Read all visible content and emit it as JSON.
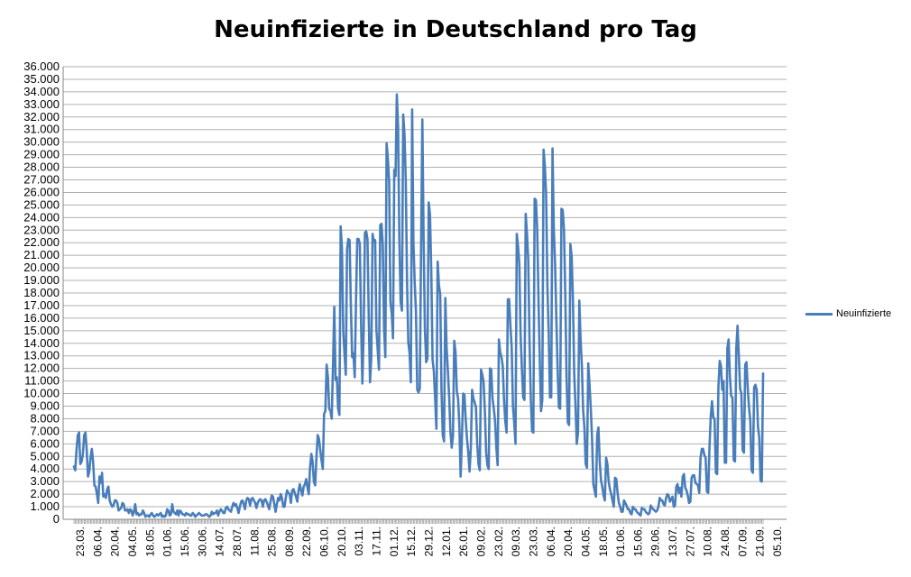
{
  "chart_data": {
    "type": "line",
    "title": "Neuinfizierte in Deutschland pro Tag",
    "xlabel": "",
    "ylabel": "",
    "ylim": [
      0,
      36000
    ],
    "ytick_step": 1000,
    "ytick_labels": [
      "0",
      "1.000",
      "2.000",
      "3.000",
      "4.000",
      "5.000",
      "6.000",
      "7.000",
      "8.000",
      "9.000",
      "10.000",
      "11.000",
      "12.000",
      "13.000",
      "14.000",
      "15.000",
      "16.000",
      "17.000",
      "18.000",
      "19.000",
      "20.000",
      "21.000",
      "22.000",
      "23.000",
      "24.000",
      "25.000",
      "26.000",
      "27.000",
      "28.000",
      "29.000",
      "30.000",
      "31.000",
      "32.000",
      "33.000",
      "34.000",
      "35.000",
      "36.000"
    ],
    "xtick_labels": [
      "23.03.",
      "06.04.",
      "20.04.",
      "04.05.",
      "18.05.",
      "01.06.",
      "15.06.",
      "30.06.",
      "14.07.",
      "28.07.",
      "11.08.",
      "25.08.",
      "08.09.",
      "22.09.",
      "06.10.",
      "20.10.",
      "03.11.",
      "17.11.",
      "01.12.",
      "15.12.",
      "29.12.",
      "12.01.",
      "26.01.",
      "09.02.",
      "23.02.",
      "09.03.",
      "23.03.",
      "06.04.",
      "20.04.",
      "04.05.",
      "18.05.",
      "01.06.",
      "15.06.",
      "29.06.",
      "13.07.",
      "27.07.",
      "10.08.",
      "24.08.",
      "07.09.",
      "21.09.",
      "05.10."
    ],
    "grid": true,
    "legend": "right",
    "series": [
      {
        "name": "Neuinfizierte",
        "color": "#4a7ebb",
        "values": [
          4200,
          3900,
          5500,
          6700,
          6900,
          4400,
          4600,
          5200,
          6700,
          6900,
          5500,
          3400,
          3800,
          4900,
          5600,
          4600,
          2700,
          2600,
          2000,
          1300,
          3400,
          2900,
          3700,
          1800,
          2000,
          1700,
          2400,
          2600,
          1500,
          1200,
          1000,
          1100,
          1500,
          1500,
          1300,
          700,
          800,
          900,
          1300,
          1200,
          700,
          700,
          800,
          500,
          800,
          700,
          300,
          600,
          1200,
          400,
          500,
          300,
          400,
          400,
          700,
          500,
          200,
          300,
          300,
          200,
          400,
          500,
          300,
          200,
          300,
          400,
          300,
          400,
          500,
          200,
          300,
          200,
          300,
          800,
          700,
          300,
          400,
          1200,
          600,
          500,
          400,
          700,
          300,
          700,
          600,
          400,
          400,
          300,
          500,
          400,
          400,
          300,
          300,
          500,
          400,
          200,
          300,
          400,
          500,
          400,
          300,
          300,
          300,
          400,
          400,
          300,
          200,
          300,
          600,
          400,
          500,
          500,
          700,
          300,
          600,
          800,
          700,
          500,
          500,
          900,
          1000,
          800,
          700,
          600,
          1000,
          1300,
          1100,
          1200,
          900,
          500,
          1000,
          1400,
          1500,
          1200,
          800,
          1500,
          1700,
          1600,
          1100,
          1600,
          1700,
          1500,
          1300,
          900,
          1300,
          1500,
          1600,
          1500,
          1000,
          1500,
          1600,
          1400,
          1100,
          800,
          1400,
          1900,
          1800,
          1200,
          600,
          1200,
          1700,
          1500,
          2000,
          1700,
          1000,
          1000,
          1700,
          2300,
          2100,
          2000,
          1300,
          2300,
          2400,
          2100,
          1800,
          1400,
          2300,
          2800,
          2300,
          1900,
          2600,
          2800,
          3200,
          2500,
          2000,
          4100,
          5200,
          4600,
          3000,
          2700,
          4900,
          6700,
          6400,
          5500,
          4700,
          4000,
          8400,
          8600,
          12300,
          11300,
          8800,
          8600,
          8000,
          12300,
          16900,
          11100,
          11300,
          8800,
          8300,
          23300,
          21600,
          15000,
          13200,
          11500,
          21500,
          22300,
          22200,
          16900,
          12900,
          13200,
          11300,
          17300,
          22300,
          22300,
          21900,
          15500,
          10800,
          14800,
          22800,
          22900,
          22300,
          16100,
          10900,
          12900,
          22700,
          22100,
          22200,
          15100,
          13500,
          11900,
          23400,
          23500,
          21800,
          15200,
          12900,
          29900,
          28700,
          26800,
          17300,
          16400,
          14400,
          27800,
          27300,
          33800,
          31200,
          22200,
          17300,
          16600,
          32200,
          30600,
          27000,
          18900,
          14100,
          13200,
          10900,
          32600,
          22100,
          18800,
          16500,
          10300,
          10100,
          10400,
          21500,
          31800,
          22200,
          15200,
          12500,
          12800,
          25200,
          24200,
          19700,
          12700,
          11800,
          9700,
          7200,
          20500,
          18600,
          17900,
          10300,
          6700,
          6200,
          17600,
          13700,
          11800,
          9800,
          7000,
          5700,
          6600,
          14200,
          13300,
          10200,
          9600,
          7500,
          3400,
          6400,
          10000,
          9900,
          7900,
          6400,
          5300,
          3800,
          5700,
          10300,
          9600,
          9300,
          8900,
          6000,
          4400,
          3900,
          11900,
          11500,
          10900,
          8600,
          5300,
          4300,
          4000,
          12000,
          11900,
          9600,
          8800,
          7800,
          5700,
          4300,
          14300,
          13300,
          12900,
          12200,
          9500,
          7800,
          6900,
          17500,
          17500,
          15400,
          13700,
          9000,
          7700,
          6000,
          22700,
          21700,
          20300,
          14600,
          12000,
          9700,
          9500,
          24300,
          22700,
          20600,
          14100,
          9600,
          7000,
          6900,
          25500,
          25400,
          23100,
          17600,
          12700,
          8600,
          9500,
          29400,
          28100,
          25800,
          18500,
          14900,
          9700,
          9700,
          29500,
          23100,
          20300,
          16000,
          11900,
          8900,
          8800,
          24700,
          24600,
          23000,
          18000,
          11300,
          7700,
          7500,
          21900,
          20900,
          17400,
          11600,
          9100,
          6000,
          6900,
          17400,
          14300,
          12200,
          8700,
          7300,
          4400,
          4100,
          12400,
          10700,
          8800,
          6400,
          2800,
          2300,
          1800,
          6700,
          7300,
          4600,
          3100,
          2600,
          1900,
          1500,
          4900,
          4400,
          3000,
          2400,
          2000,
          1500,
          1000,
          3300,
          3200,
          2100,
          1300,
          1000,
          600,
          600,
          1500,
          1300,
          1100,
          800,
          800,
          500,
          400,
          1000,
          800,
          800,
          600,
          500,
          400,
          300,
          900,
          800,
          800,
          600,
          500,
          400,
          500,
          1100,
          900,
          800,
          700,
          600,
          700,
          1000,
          1700,
          1500,
          1500,
          1200,
          1100,
          1700,
          2000,
          1900,
          1400,
          1600,
          1800,
          1000,
          1100,
          2600,
          2800,
          2100,
          2500,
          1800,
          3400,
          3600,
          2500,
          2300,
          1900,
          1300,
          1400,
          3300,
          3500,
          3500,
          2900,
          2800,
          2700,
          2100,
          4900,
          5600,
          5600,
          5100,
          4900,
          2200,
          2100,
          5700,
          8200,
          9400,
          8100,
          8000,
          3700,
          3600,
          10500,
          12600,
          12200,
          10300,
          11000,
          4500,
          4500,
          13600,
          14300,
          11400,
          9800,
          9700,
          4700,
          4600,
          13600,
          15400,
          13000,
          10400,
          10000,
          5500,
          5300,
          12300,
          12500,
          10400,
          8900,
          7800,
          3900,
          3700,
          10500,
          10700,
          10300,
          7400,
          6500,
          3100,
          3000,
          11600
        ]
      }
    ]
  }
}
